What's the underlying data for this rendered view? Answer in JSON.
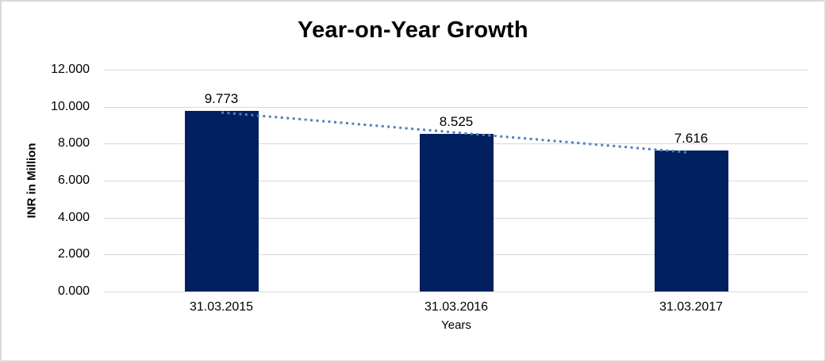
{
  "chart_data": {
    "type": "bar",
    "title": "Year-on-Year Growth",
    "xlabel": "Years",
    "ylabel": "INR in Million",
    "categories": [
      "31.03.2015",
      "31.03.2016",
      "31.03.2017"
    ],
    "values": [
      9.773,
      8.525,
      7.616
    ],
    "value_labels": [
      "9.773",
      "8.525",
      "7.616"
    ],
    "ylim": [
      0,
      12
    ],
    "yticks": [
      0,
      2,
      4,
      6,
      8,
      10,
      12
    ],
    "ytick_labels": [
      "0.000",
      "2.000",
      "4.000",
      "6.000",
      "8.000",
      "10.000",
      "12.000"
    ],
    "grid": true,
    "legend": "none",
    "trendline": {
      "type": "linear",
      "style": "dotted",
      "from": {
        "category": "31.03.2015",
        "value": 9.773
      },
      "to": {
        "category": "31.03.2017",
        "value": 7.616
      }
    },
    "colors": {
      "bar": "#002060",
      "trendline": "#4F81BD",
      "gridline": "#D9D9D9",
      "text": "#000000",
      "frame_border": "#D9D9D9",
      "background": "#FFFFFF"
    }
  }
}
